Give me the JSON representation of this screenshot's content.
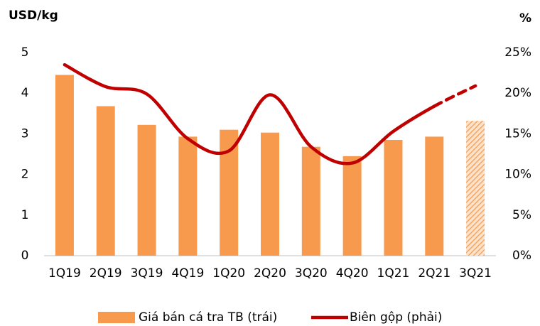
{
  "chart_data": {
    "type": "bar_line",
    "y_label": "USD/kg",
    "y2_label": "%",
    "categories": [
      "1Q19",
      "2Q19",
      "3Q19",
      "4Q19",
      "1Q20",
      "2Q20",
      "3Q20",
      "4Q20",
      "1Q21",
      "2Q21",
      "3Q21"
    ],
    "projected_index": 10,
    "series": [
      {
        "name": "Giá bán cá tra TB (trái)",
        "type": "bar",
        "color": "#f79a4d",
        "values": [
          4.45,
          3.68,
          3.22,
          2.93,
          3.1,
          3.03,
          2.68,
          2.45,
          2.85,
          2.93,
          3.32
        ]
      },
      {
        "name": "Biên gộp (phải)",
        "type": "line",
        "axis": "y2",
        "color": "#c00000",
        "values": [
          23.5,
          20.8,
          19.9,
          14.4,
          12.9,
          19.8,
          13.4,
          11.4,
          15.3,
          18.4,
          20.9
        ]
      }
    ],
    "ylim": [
      0,
      5
    ],
    "yticks": [
      0,
      1,
      2,
      3,
      4,
      5
    ],
    "y2lim": [
      0,
      25
    ],
    "y2ticks": [
      {
        "value": 0,
        "label": "0%"
      },
      {
        "value": 5,
        "label": "5%"
      },
      {
        "value": 10,
        "label": "10%"
      },
      {
        "value": 15,
        "label": "15%"
      },
      {
        "value": 20,
        "label": "20%"
      },
      {
        "value": 25,
        "label": "25%"
      }
    ]
  }
}
